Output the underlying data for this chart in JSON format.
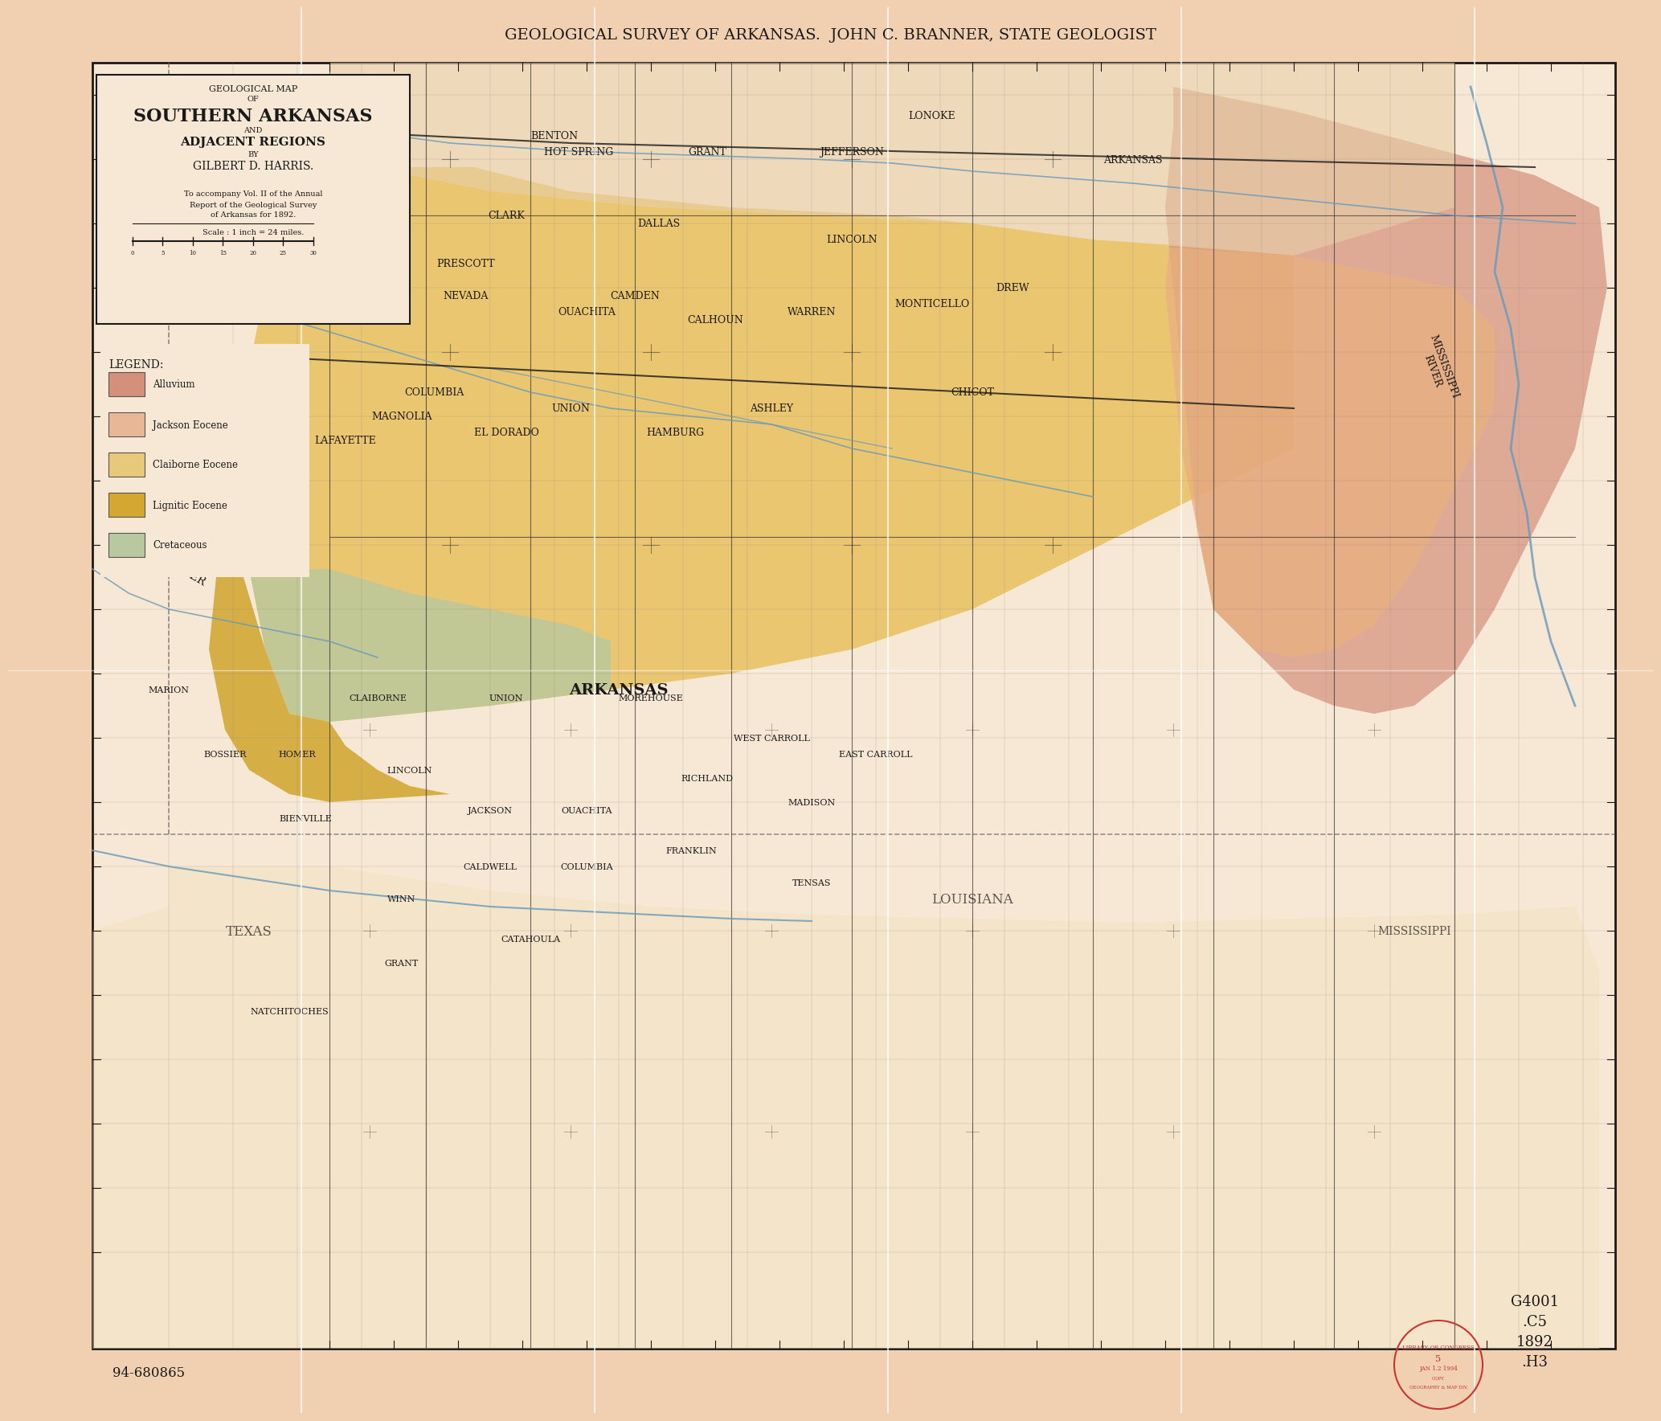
{
  "background_color": "#f5dfc5",
  "paper_color": "#f0d5b8",
  "map_bg": "#f7e8d5",
  "border_color": "#1a1a1a",
  "top_title": "GEOLOGICAL SURVEY OF ARKANSAS.  JOHN C. BRANNER, STATE GEOLOGIST",
  "map_title_line1": "GEOLOGICAL MAP",
  "map_title_line2": "OF",
  "map_title_line3": "SOUTHERN ARKANSAS",
  "map_title_line4": "AND",
  "map_title_line5": "ADJACENT REGIONS",
  "map_title_line6": "BY",
  "map_title_line7": "GILBERT D. HARRIS.",
  "scale_text": "Scale : 1 inch = 24 miles.",
  "legend_title": "LEGEND:",
  "legend_items": [
    {
      "label": "Alluvium",
      "color": "#d4907a"
    },
    {
      "label": "Jackson Eocene",
      "color": "#e8b896"
    },
    {
      "label": "Claiborne Eocene",
      "color": "#e8c87a"
    },
    {
      "label": "Lignitic Eocene",
      "color": "#d4a830"
    },
    {
      "label": "Cretaceous",
      "color": "#b8c8a0"
    }
  ],
  "outer_bg": "#f0d0b0",
  "grid_color": "#888888",
  "county_line_color": "#333333",
  "river_color": "#6699bb",
  "stamp_color": "#cc3333",
  "bottom_left_text": "94-680865",
  "bottom_right_text": "G4001\n.C5\n1892\n.H3"
}
